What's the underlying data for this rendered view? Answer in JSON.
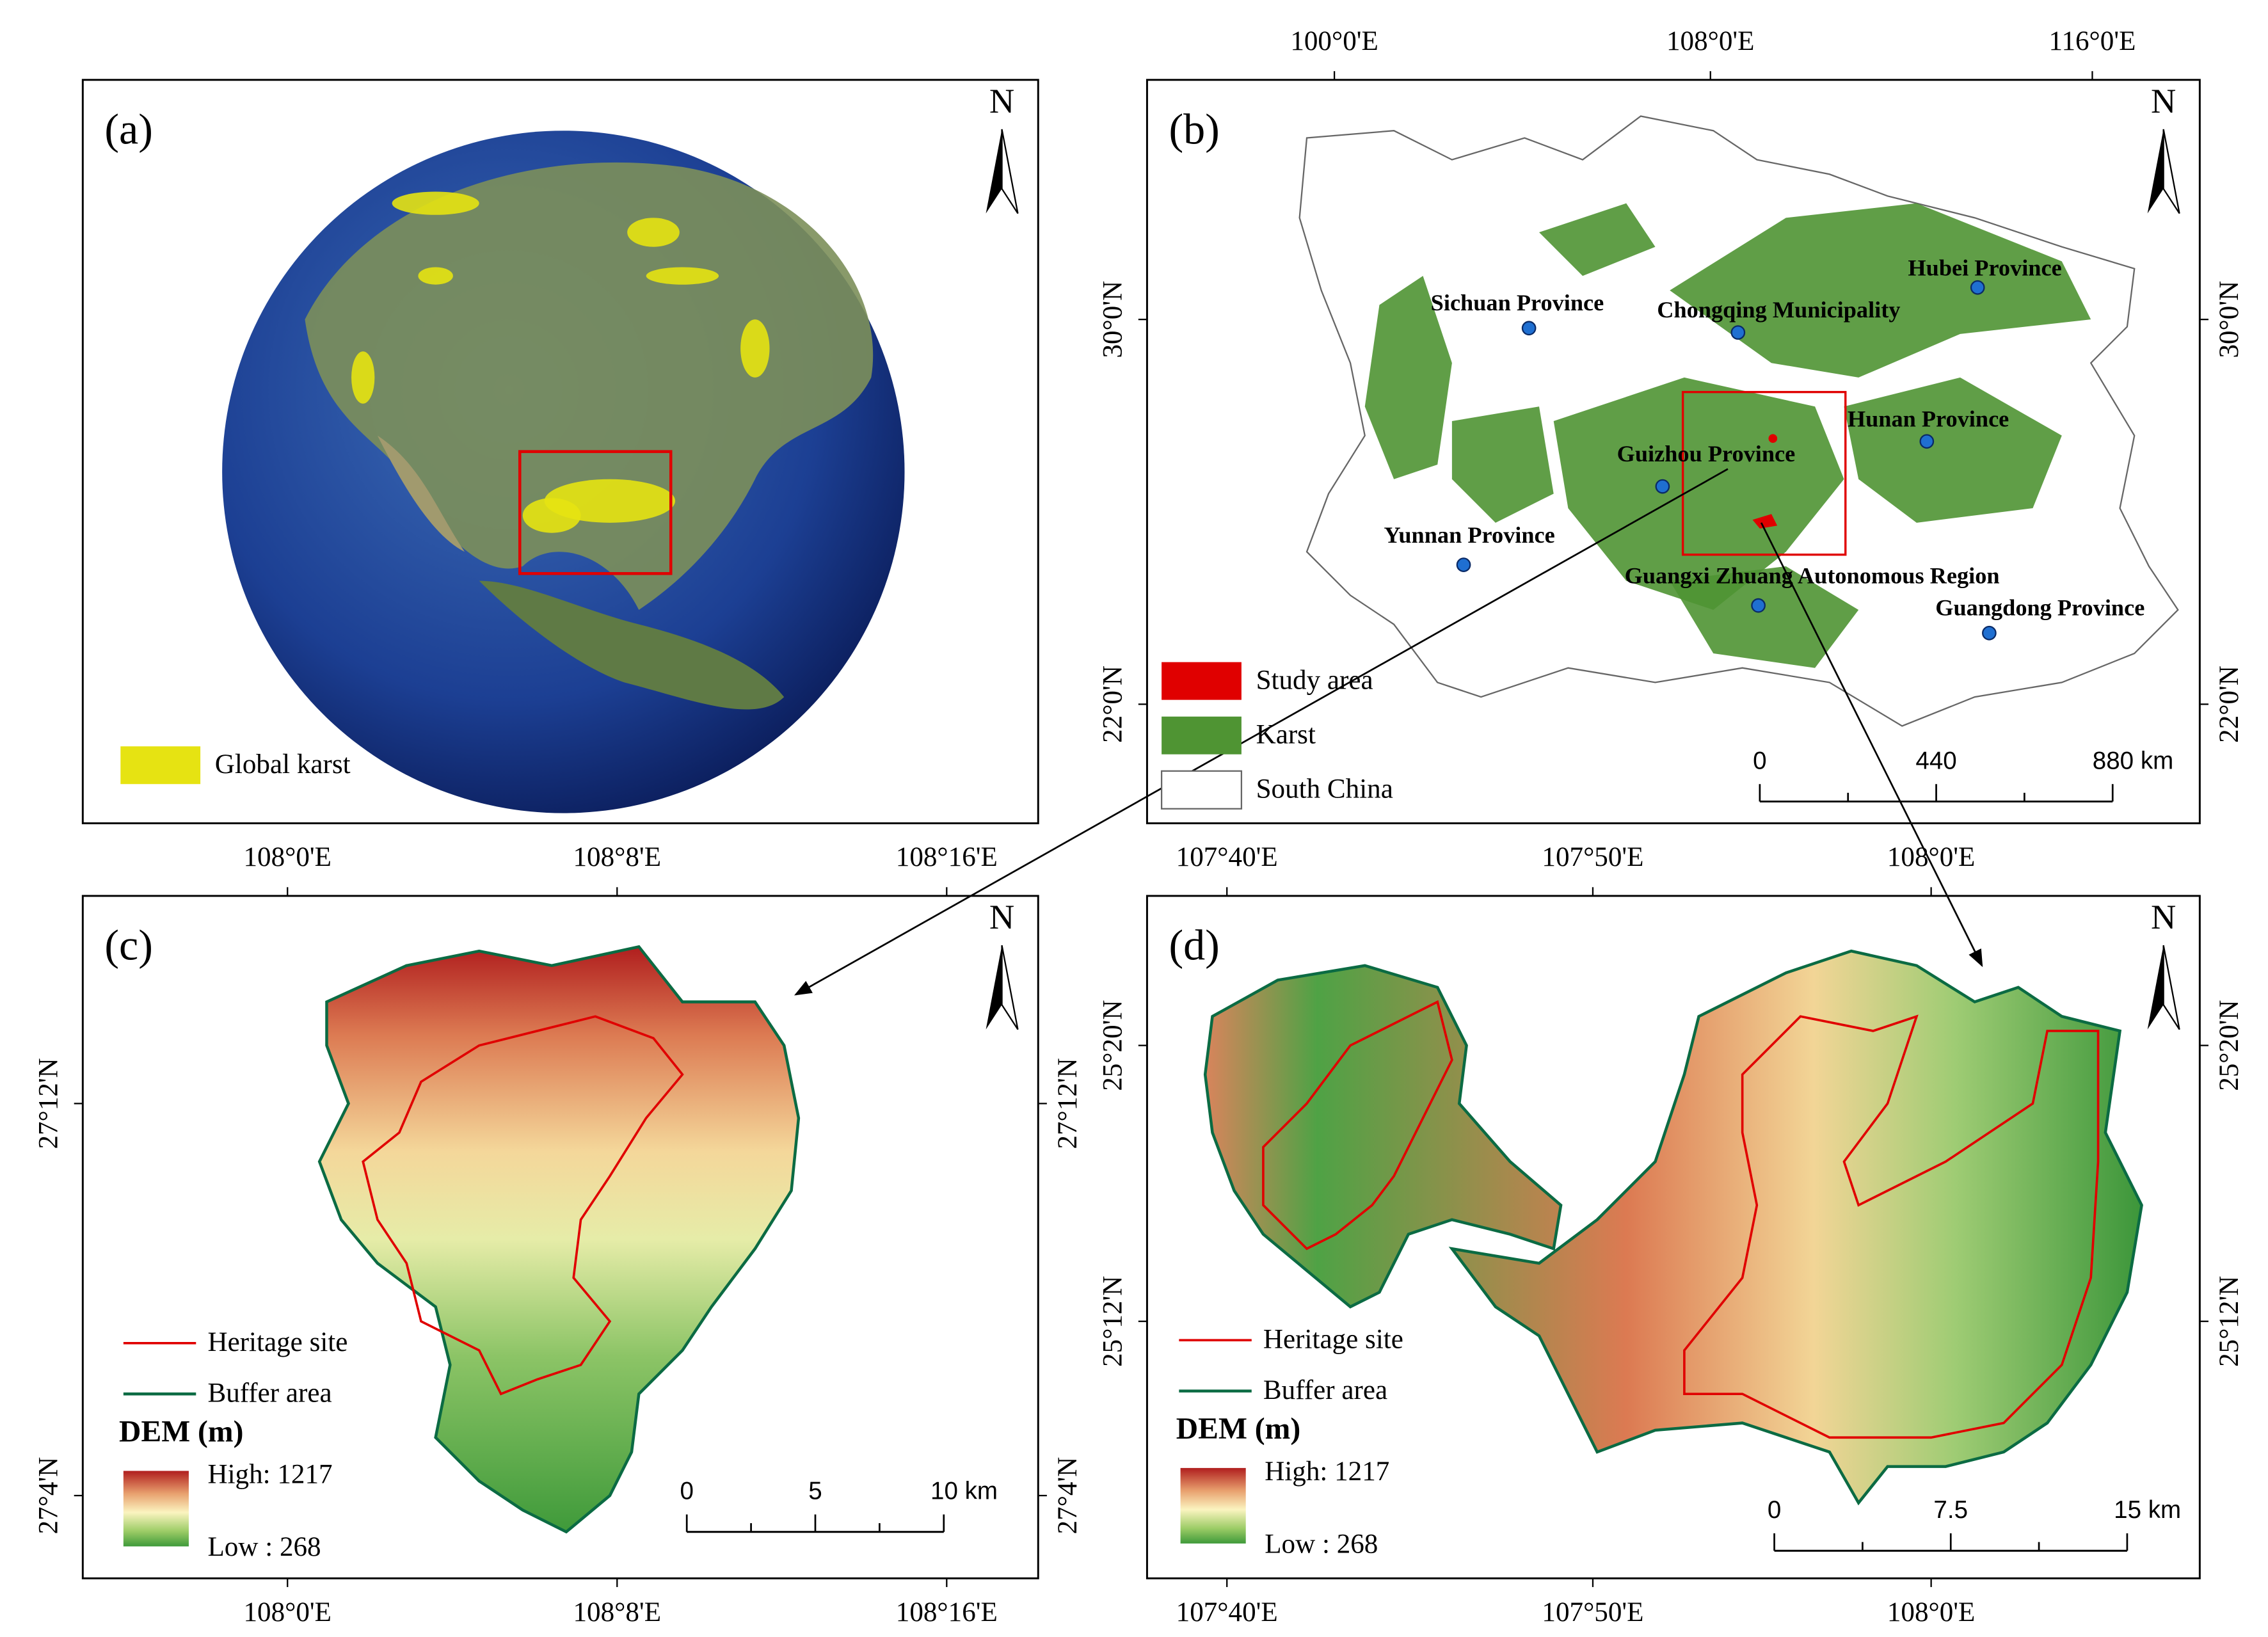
{
  "panels": [
    {
      "label": "(a)",
      "north": "N",
      "legend": [
        "Global karst"
      ]
    },
    {
      "label": "(b)",
      "north": "N",
      "top_ticks": [
        "100°0'E",
        "108°0'E",
        "116°0'E"
      ],
      "left_ticks": [
        "30°0'N",
        "22°0'N"
      ],
      "right_ticks": [
        "30°0'N",
        "22°0'N"
      ],
      "places": [
        "Sichuan Province",
        "Chongqing Municipality",
        "Hubei Province",
        "Hunan Province",
        "Guizhou Province",
        "Yunnan Province",
        "Guangxi Zhuang Autonomous Region",
        "Guangdong Province"
      ],
      "legend": [
        "Study area",
        "Karst",
        "South China"
      ],
      "scale": [
        "0",
        "440",
        "880 km"
      ]
    },
    {
      "label": "(c)",
      "north": "N",
      "top_ticks": [
        "108°0'E",
        "108°8'E",
        "108°16'E"
      ],
      "bottom_ticks": [
        "108°0'E",
        "108°8'E",
        "108°16'E"
      ],
      "left_ticks": [
        "27°12'N",
        "27°4'N"
      ],
      "right_ticks": [
        "27°12'N",
        "27°4'N"
      ],
      "legend": [
        "Heritage site",
        "Buffer area"
      ],
      "dem_title": "DEM (m)",
      "dem_high": "High: 1217",
      "dem_low": "Low : 268",
      "scale": [
        "0",
        "5",
        "10 km"
      ]
    },
    {
      "label": "(d)",
      "north": "N",
      "top_ticks": [
        "107°40'E",
        "107°50'E",
        "108°0'E"
      ],
      "bottom_ticks": [
        "107°40'E",
        "107°50'E",
        "108°0'E"
      ],
      "left_ticks": [
        "25°20'N",
        "25°12'N"
      ],
      "right_ticks": [
        "25°20'N",
        "25°12'N"
      ],
      "legend": [
        "Heritage site",
        "Buffer area"
      ],
      "dem_title": "DEM (m)",
      "dem_high": "High: 1217",
      "dem_low": "Low : 268",
      "scale": [
        "0",
        "7.5",
        "15 km"
      ]
    }
  ]
}
